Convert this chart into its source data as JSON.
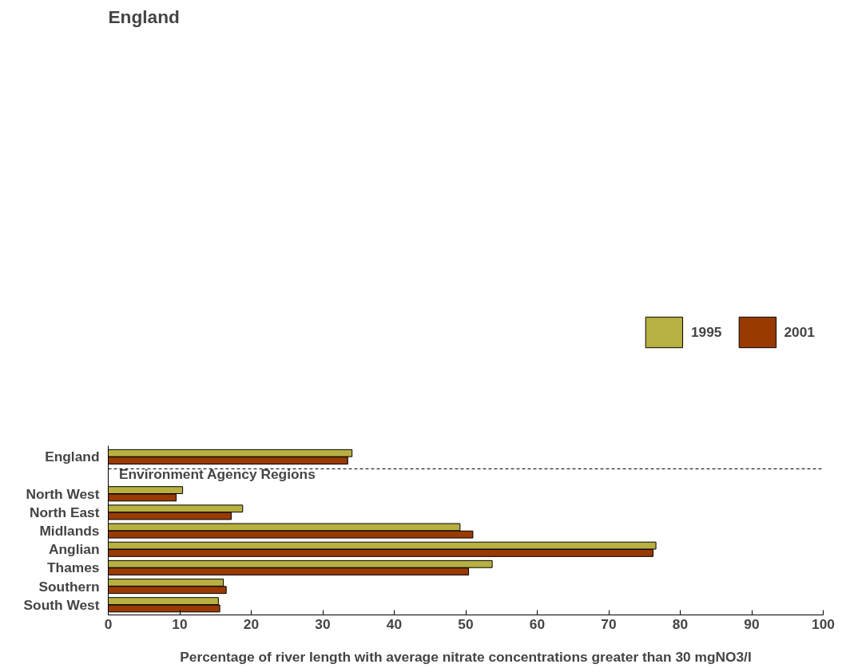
{
  "chart_data": {
    "type": "bar",
    "orientation": "horizontal",
    "title": "England",
    "xlabel": "Percentage of river length with average nitrate concentrations greater than 30 mgNO3/l",
    "categories": [
      "England",
      null,
      "North West",
      "North East",
      "Midlands",
      "Anglian",
      "Thames",
      "Southern",
      "South West"
    ],
    "series": [
      {
        "name": "1995",
        "color": "#b8b040",
        "values": [
          34.1,
          null,
          10.4,
          18.8,
          49.2,
          76.6,
          53.7,
          16.1,
          15.4
        ]
      },
      {
        "name": "2001",
        "color": "#993a00",
        "values": [
          33.5,
          null,
          9.5,
          17.2,
          51.0,
          76.2,
          50.4,
          16.5,
          15.6
        ]
      }
    ],
    "xlim": [
      0,
      100
    ],
    "xticks": [
      0,
      10,
      20,
      30,
      40,
      50,
      60,
      70,
      80,
      90,
      100
    ],
    "grid": false,
    "legend": "top right",
    "annotations": [
      "Environment Agency Regions"
    ]
  }
}
